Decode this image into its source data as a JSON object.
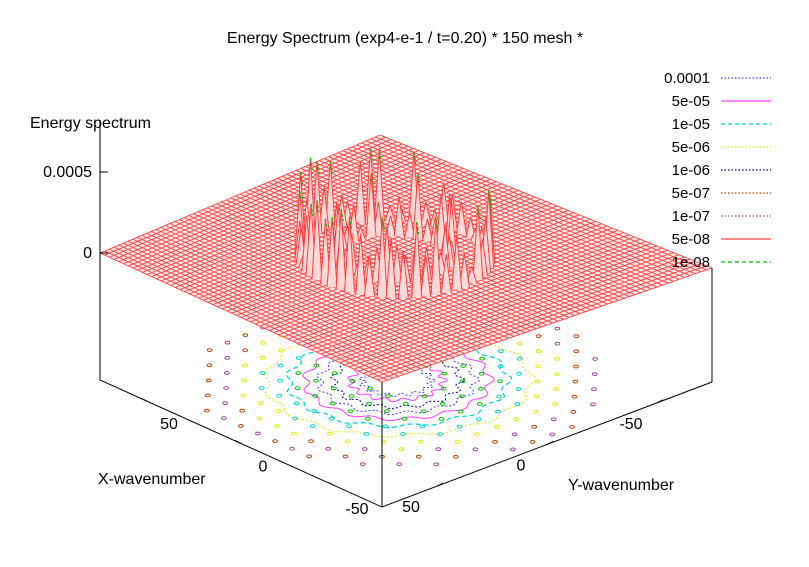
{
  "chart_data": {
    "type": "surface3d",
    "title": "Energy Spectrum (exp4-e-1 / t=0.20) * 150 mesh *",
    "zlabel": "Energy spectrum",
    "xlabel": "X-wavenumber",
    "ylabel": "Y-wavenumber",
    "xlim": [
      -75,
      75
    ],
    "ylim": [
      -75,
      75
    ],
    "zlim": [
      0,
      0.0005
    ],
    "x_ticks": [
      "-50",
      "0",
      "50"
    ],
    "y_ticks": [
      "50",
      "0",
      "-50"
    ],
    "z_ticks": [
      "0.0005",
      "0"
    ],
    "surface_color": "#ff4040",
    "ring_radii": [
      20,
      33
    ],
    "contour_levels": [
      {
        "label": "0.0001",
        "color": "#4040ff",
        "dash": "dotted"
      },
      {
        "label": "5e-05",
        "color": "#ff40ff",
        "dash": "solid"
      },
      {
        "label": "1e-05",
        "color": "#00d0d0",
        "dash": "dashed"
      },
      {
        "label": "5e-06",
        "color": "#e8e800",
        "dash": "dotted"
      },
      {
        "label": "1e-06",
        "color": "#000080",
        "dash": "dotted"
      },
      {
        "label": "5e-07",
        "color": "#c04000",
        "dash": "dotted"
      },
      {
        "label": "1e-07",
        "color": "#a040a0",
        "dash": "dotted"
      },
      {
        "label": "5e-08",
        "color": "#ff4040",
        "dash": "solid"
      },
      {
        "label": "1e-08",
        "color": "#00c000",
        "dash": "dashed"
      }
    ]
  }
}
